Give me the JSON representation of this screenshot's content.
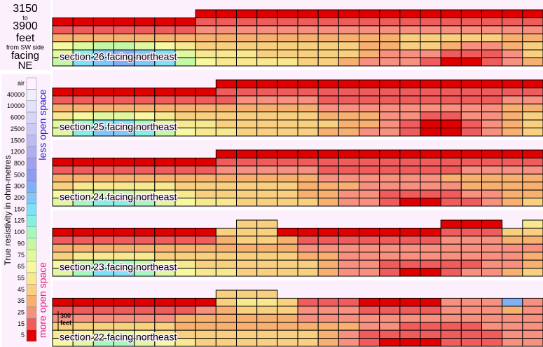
{
  "header": {
    "from": "3150",
    "to_word": "to",
    "to": "3900",
    "unit": "feet",
    "ref": "from SW side",
    "facing_word": "facing",
    "facing": "NE"
  },
  "legend": {
    "axis_label": "True resistivity in ohm-metres",
    "less": "less open space",
    "more": "more open space",
    "levels": [
      {
        "label": "air",
        "color": "#fff0ff"
      },
      {
        "value": 40000,
        "color": "#eeeefd"
      },
      {
        "value": 10000,
        "color": "#e2e2fb"
      },
      {
        "value": 6000,
        "color": "#d6d6f8"
      },
      {
        "value": 2500,
        "color": "#cacaf6"
      },
      {
        "value": 1500,
        "color": "#bcbcf3"
      },
      {
        "value": 1200,
        "color": "#aeaef0"
      },
      {
        "value": 800,
        "color": "#a0a0ee"
      },
      {
        "value": 500,
        "color": "#8e9cf0"
      },
      {
        "value": 300,
        "color": "#80b0f8"
      },
      {
        "value": 200,
        "color": "#80c8fa"
      },
      {
        "value": 150,
        "color": "#80e0f8"
      },
      {
        "value": 125,
        "color": "#84f0e4"
      },
      {
        "value": 100,
        "color": "#a4f8c0"
      },
      {
        "value": 90,
        "color": "#c4f8a4"
      },
      {
        "value": 75,
        "color": "#e2f8a0"
      },
      {
        "value": 65,
        "color": "#f8f8a0"
      },
      {
        "value": 55,
        "color": "#f8e890"
      },
      {
        "value": 45,
        "color": "#f8d080"
      },
      {
        "value": 35,
        "color": "#f8b070"
      },
      {
        "value": 25,
        "color": "#f89080"
      },
      {
        "value": 15,
        "color": "#f05c5c"
      },
      {
        "value": 5,
        "color": "#e00000"
      }
    ]
  },
  "scale_bar": {
    "length": "300",
    "unit": "feet"
  },
  "sections": [
    {
      "label": "section 26 facing northeast",
      "rows": [
        [
          null,
          null,
          null,
          null,
          null,
          null,
          null,
          5,
          5,
          5,
          5,
          5,
          5,
          5,
          5,
          5,
          5,
          5,
          5,
          5,
          5,
          5,
          5,
          5
        ],
        [
          5,
          5,
          5,
          5,
          5,
          5,
          5,
          15,
          15,
          15,
          15,
          15,
          15,
          15,
          15,
          15,
          15,
          15,
          15,
          15,
          15,
          15,
          15,
          15
        ],
        [
          15,
          15,
          15,
          15,
          15,
          15,
          15,
          25,
          25,
          25,
          25,
          25,
          25,
          25,
          25,
          25,
          25,
          25,
          25,
          25,
          25,
          25,
          25,
          25
        ],
        [
          35,
          35,
          35,
          35,
          35,
          35,
          35,
          35,
          35,
          35,
          35,
          35,
          35,
          35,
          35,
          35,
          35,
          45,
          45,
          45,
          45,
          45,
          35,
          35
        ],
        [
          65,
          75,
          90,
          90,
          75,
          65,
          55,
          45,
          45,
          45,
          45,
          45,
          45,
          45,
          45,
          35,
          35,
          45,
          45,
          35,
          25,
          25,
          35,
          45
        ],
        [
          75,
          125,
          200,
          300,
          200,
          150,
          75,
          55,
          55,
          55,
          45,
          45,
          45,
          45,
          45,
          35,
          25,
          25,
          25,
          15,
          15,
          15,
          25,
          45
        ],
        [
          90,
          150,
          200,
          300,
          200,
          150,
          90,
          65,
          55,
          55,
          55,
          55,
          45,
          45,
          35,
          25,
          25,
          25,
          15,
          5,
          5,
          15,
          25,
          35
        ]
      ]
    },
    {
      "label": "section 25 facing northeast",
      "rows": [
        [
          null,
          null,
          null,
          null,
          null,
          null,
          null,
          null,
          5,
          5,
          5,
          5,
          5,
          5,
          5,
          5,
          5,
          5,
          5,
          5,
          5,
          5,
          5,
          5
        ],
        [
          5,
          5,
          5,
          5,
          5,
          5,
          5,
          5,
          15,
          15,
          15,
          15,
          15,
          15,
          15,
          15,
          15,
          15,
          15,
          15,
          15,
          15,
          15,
          15
        ],
        [
          15,
          15,
          15,
          15,
          15,
          15,
          15,
          15,
          15,
          25,
          25,
          25,
          25,
          15,
          15,
          15,
          15,
          15,
          15,
          15,
          15,
          15,
          25,
          25
        ],
        [
          35,
          35,
          35,
          35,
          35,
          35,
          35,
          35,
          35,
          35,
          35,
          35,
          35,
          25,
          25,
          25,
          25,
          25,
          25,
          25,
          25,
          25,
          35,
          35
        ],
        [
          55,
          65,
          75,
          75,
          65,
          55,
          45,
          45,
          45,
          45,
          45,
          45,
          45,
          35,
          35,
          35,
          25,
          25,
          15,
          15,
          25,
          25,
          35,
          45
        ],
        [
          75,
          100,
          150,
          150,
          100,
          75,
          55,
          55,
          45,
          45,
          45,
          45,
          45,
          45,
          35,
          35,
          25,
          15,
          5,
          5,
          15,
          25,
          35,
          45
        ],
        [
          75,
          125,
          200,
          200,
          125,
          90,
          65,
          55,
          55,
          45,
          45,
          45,
          45,
          35,
          35,
          25,
          25,
          15,
          5,
          5,
          15,
          25,
          35,
          45
        ]
      ]
    },
    {
      "label": "section 24 facing northeast",
      "rows": [
        [
          null,
          null,
          null,
          null,
          null,
          null,
          null,
          null,
          5,
          5,
          5,
          5,
          5,
          5,
          5,
          5,
          5,
          5,
          5,
          5,
          5,
          5,
          5,
          5
        ],
        [
          5,
          5,
          5,
          5,
          5,
          5,
          5,
          5,
          15,
          15,
          15,
          15,
          15,
          15,
          15,
          15,
          15,
          15,
          15,
          15,
          15,
          15,
          15,
          15
        ],
        [
          15,
          15,
          15,
          15,
          15,
          15,
          15,
          15,
          25,
          25,
          25,
          25,
          25,
          15,
          15,
          15,
          15,
          15,
          15,
          15,
          25,
          25,
          25,
          25
        ],
        [
          35,
          35,
          35,
          35,
          35,
          35,
          35,
          35,
          35,
          35,
          35,
          35,
          35,
          25,
          25,
          25,
          25,
          25,
          25,
          35,
          35,
          35,
          35,
          35
        ],
        [
          45,
          55,
          55,
          55,
          55,
          55,
          45,
          45,
          45,
          45,
          45,
          45,
          35,
          35,
          35,
          25,
          25,
          25,
          25,
          25,
          35,
          35,
          35,
          35
        ],
        [
          65,
          75,
          90,
          90,
          75,
          65,
          55,
          45,
          45,
          45,
          45,
          45,
          35,
          35,
          25,
          25,
          15,
          15,
          15,
          15,
          25,
          25,
          35,
          35
        ],
        [
          75,
          100,
          125,
          125,
          100,
          75,
          65,
          55,
          55,
          45,
          45,
          45,
          45,
          35,
          25,
          25,
          15,
          5,
          5,
          15,
          15,
          25,
          35,
          45
        ]
      ]
    },
    {
      "label": "section 23 facing northeast",
      "rows": [
        [
          null,
          null,
          null,
          null,
          null,
          null,
          null,
          null,
          null,
          45,
          45,
          null,
          null,
          null,
          null,
          null,
          null,
          null,
          null,
          5,
          5,
          5,
          null,
          55
        ],
        [
          5,
          5,
          5,
          5,
          5,
          5,
          5,
          5,
          45,
          45,
          45,
          5,
          5,
          5,
          5,
          5,
          5,
          5,
          5,
          15,
          15,
          15,
          45,
          45
        ],
        [
          15,
          15,
          15,
          15,
          15,
          15,
          15,
          15,
          35,
          45,
          45,
          35,
          15,
          15,
          15,
          15,
          15,
          15,
          15,
          25,
          25,
          25,
          35,
          35
        ],
        [
          35,
          35,
          35,
          35,
          35,
          35,
          35,
          35,
          35,
          35,
          35,
          35,
          25,
          25,
          25,
          25,
          25,
          25,
          25,
          25,
          25,
          25,
          25,
          25
        ],
        [
          45,
          55,
          55,
          55,
          55,
          45,
          45,
          45,
          45,
          45,
          45,
          45,
          35,
          35,
          25,
          25,
          25,
          25,
          25,
          25,
          25,
          25,
          25,
          35
        ],
        [
          65,
          90,
          100,
          100,
          90,
          65,
          55,
          45,
          45,
          45,
          45,
          45,
          45,
          35,
          25,
          25,
          15,
          15,
          15,
          15,
          15,
          25,
          25,
          35
        ],
        [
          75,
          100,
          150,
          150,
          100,
          75,
          65,
          55,
          55,
          45,
          45,
          45,
          45,
          35,
          25,
          25,
          15,
          5,
          5,
          15,
          25,
          25,
          35,
          45
        ]
      ]
    },
    {
      "label": "section 22 facing northeast",
      "rows": [
        [
          null,
          null,
          null,
          null,
          null,
          null,
          null,
          null,
          45,
          45,
          45,
          null,
          null,
          null,
          null,
          null,
          null,
          null,
          null,
          null,
          null,
          null,
          null,
          null
        ],
        [
          5,
          5,
          5,
          5,
          5,
          5,
          5,
          5,
          45,
          55,
          55,
          45,
          15,
          15,
          15,
          5,
          5,
          5,
          5,
          25,
          25,
          25,
          300,
          25
        ],
        [
          15,
          15,
          15,
          15,
          15,
          15,
          15,
          25,
          35,
          45,
          45,
          45,
          25,
          25,
          25,
          15,
          15,
          15,
          15,
          25,
          25,
          25,
          35,
          25
        ],
        [
          25,
          25,
          25,
          25,
          25,
          25,
          35,
          35,
          35,
          35,
          35,
          35,
          25,
          25,
          25,
          25,
          25,
          25,
          25,
          25,
          25,
          25,
          25,
          25
        ],
        [
          45,
          45,
          45,
          45,
          45,
          45,
          35,
          35,
          35,
          35,
          35,
          35,
          35,
          35,
          35,
          25,
          25,
          15,
          15,
          15,
          15,
          25,
          25,
          25
        ],
        [
          55,
          65,
          75,
          75,
          65,
          55,
          45,
          45,
          45,
          45,
          45,
          45,
          45,
          35,
          25,
          15,
          15,
          15,
          15,
          15,
          15,
          15,
          25,
          25
        ],
        [
          65,
          75,
          100,
          100,
          75,
          65,
          55,
          45,
          45,
          45,
          45,
          45,
          45,
          35,
          25,
          15,
          5,
          5,
          5,
          15,
          15,
          15,
          25,
          25
        ]
      ]
    }
  ]
}
